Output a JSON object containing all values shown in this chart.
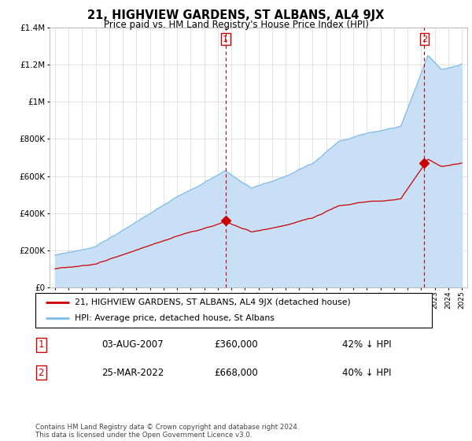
{
  "title": "21, HIGHVIEW GARDENS, ST ALBANS, AL4 9JX",
  "subtitle": "Price paid vs. HM Land Registry's House Price Index (HPI)",
  "legend_entry1": "21, HIGHVIEW GARDENS, ST ALBANS, AL4 9JX (detached house)",
  "legend_entry2": "HPI: Average price, detached house, St Albans",
  "table_row1_num": "1",
  "table_row1_date": "03-AUG-2007",
  "table_row1_price": "£360,000",
  "table_row1_hpi": "42% ↓ HPI",
  "table_row2_num": "2",
  "table_row2_date": "25-MAR-2022",
  "table_row2_price": "£668,000",
  "table_row2_hpi": "40% ↓ HPI",
  "footnote": "Contains HM Land Registry data © Crown copyright and database right 2024.\nThis data is licensed under the Open Government Licence v3.0.",
  "sale1_year": 2007.58,
  "sale1_price": 360000,
  "sale2_year": 2022.23,
  "sale2_price": 668000,
  "hpi_color": "#7dbde8",
  "hpi_fill_color": "#c8dff5",
  "price_color": "#cc0000",
  "marker_color": "#cc0000",
  "vline_color": "#cc0000",
  "ylim_min": 0,
  "ylim_max": 1400000,
  "xlim_min": 1994.6,
  "xlim_max": 2025.4,
  "background_color": "#ffffff",
  "grid_color": "#d8d8d8"
}
